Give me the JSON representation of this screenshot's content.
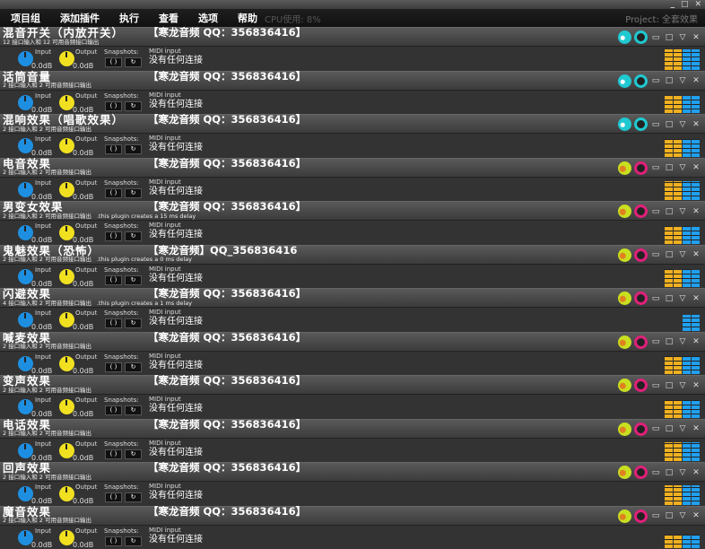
{
  "window": {
    "controls": [
      "_",
      "□",
      "✕"
    ]
  },
  "menu": {
    "items": [
      "项目组",
      "添加插件",
      "执行",
      "查看",
      "选项",
      "帮助"
    ],
    "cpu": "CPU使用: 8%",
    "project": "Project: 全套效果"
  },
  "labels": {
    "input": "Input",
    "output": "Output",
    "snapshots": "Snapshots:",
    "snap_a": "( )",
    "snap_b": "↻",
    "midi": "MIDI input",
    "midi_value": "没有任何连接",
    "input_db": "0.0dB",
    "output_db": "0.0dB",
    "min": "▭",
    "max": "□",
    "collapse": "▽",
    "close": "✕"
  },
  "colors": {
    "input_knob": "#1e8fe0",
    "output_knob": "#f0e020",
    "meter_yellow": "#f0b020",
    "meter_blue": "#20a0f0",
    "cyan": "#20c8d0",
    "pink": "#e0207a",
    "lime": "#c8e020"
  },
  "plugins": [
    {
      "name": "混音开关（内放开关）",
      "io": "12 接口输入和 12 可用音频接口输出",
      "delay": "",
      "brand": "【寒龙音频 QQ：356836416】",
      "icon_theme": "cyan",
      "meters": [
        0.9,
        0.9,
        0.9,
        0.9
      ]
    },
    {
      "name": "话筒音量",
      "io": "2 接口输入和 2 可用音频接口输出",
      "delay": "",
      "brand": "【寒龙音频 QQ：356836416】",
      "icon_theme": "cyan",
      "meters": [
        0.75,
        0.75,
        0.75,
        0.75
      ]
    },
    {
      "name": "混响效果（唱歌效果）",
      "io": "2 接口输入和 2 可用音频接口输出",
      "delay": "",
      "brand": "【寒龙音频 QQ：356836416】",
      "icon_theme": "cyan",
      "meters": [
        0.8,
        0.8,
        0.8,
        0.8
      ]
    },
    {
      "name": "电音效果",
      "io": "2 接口输入和 2 可用音频接口输出",
      "delay": "",
      "brand": "【寒龙音频 QQ：356836416】",
      "icon_theme": "pink",
      "meters": [
        0.85,
        0.85,
        0.85,
        0.85
      ]
    },
    {
      "name": "男变女效果",
      "io": "2 接口输入和 2 可用音频接口输出",
      "delay": ".this plugin creates a 15 ms delay",
      "brand": "【寒龙音频 QQ：356836416】",
      "icon_theme": "pink",
      "meters": [
        0.8,
        0.75,
        0.8,
        0.75
      ]
    },
    {
      "name": "鬼魅效果（恐怖）",
      "io": "2 接口输入和 2 可用音频接口输出",
      "delay": ".this plugin creates a 0 ms delay",
      "brand": "【寒龙音频】QQ_356836416",
      "icon_theme": "pink",
      "meters": [
        0.8,
        0.75,
        0.8,
        0.75
      ]
    },
    {
      "name": "闪避效果",
      "io": "4 接口输入和 2 可用音频接口输出",
      "delay": ".this plugin creates a 1 ms delay",
      "brand": "【寒龙音频 QQ：356836416】",
      "icon_theme": "pink",
      "meters": [
        0,
        0,
        0.7,
        0.7
      ]
    },
    {
      "name": "喊麦效果",
      "io": "2 接口输入和 2 可用音频接口输出",
      "delay": "",
      "brand": "【寒龙音频 QQ：356836416】",
      "icon_theme": "pink",
      "meters": [
        0.8,
        0.8,
        0.8,
        0.8
      ]
    },
    {
      "name": "变声效果",
      "io": "2 接口输入和 2 可用音频接口输出",
      "delay": "",
      "brand": "【寒龙音频 QQ：356836416】",
      "icon_theme": "pink",
      "meters": [
        0.8,
        0.8,
        0.8,
        0.8
      ]
    },
    {
      "name": "电话效果",
      "io": "2 接口输入和 2 可用音频接口输出",
      "delay": "",
      "brand": "【寒龙音频 QQ：356836416】",
      "icon_theme": "pink",
      "meters": [
        0.85,
        0.85,
        0.85,
        0.85
      ]
    },
    {
      "name": "回声效果",
      "io": "2 接口输入和 2 可用音频接口输出",
      "delay": "",
      "brand": "【寒龙音频 QQ：356836416】",
      "icon_theme": "pink",
      "meters": [
        0.85,
        0.85,
        0.85,
        0.85
      ]
    },
    {
      "name": "魔音效果",
      "io": "2 接口输入和 2 可用音频接口输出",
      "delay": "",
      "brand": "【寒龙音频 QQ：356836416】",
      "icon_theme": "pink",
      "meters": [
        0.6,
        0.6,
        0.6,
        0.6
      ]
    }
  ]
}
